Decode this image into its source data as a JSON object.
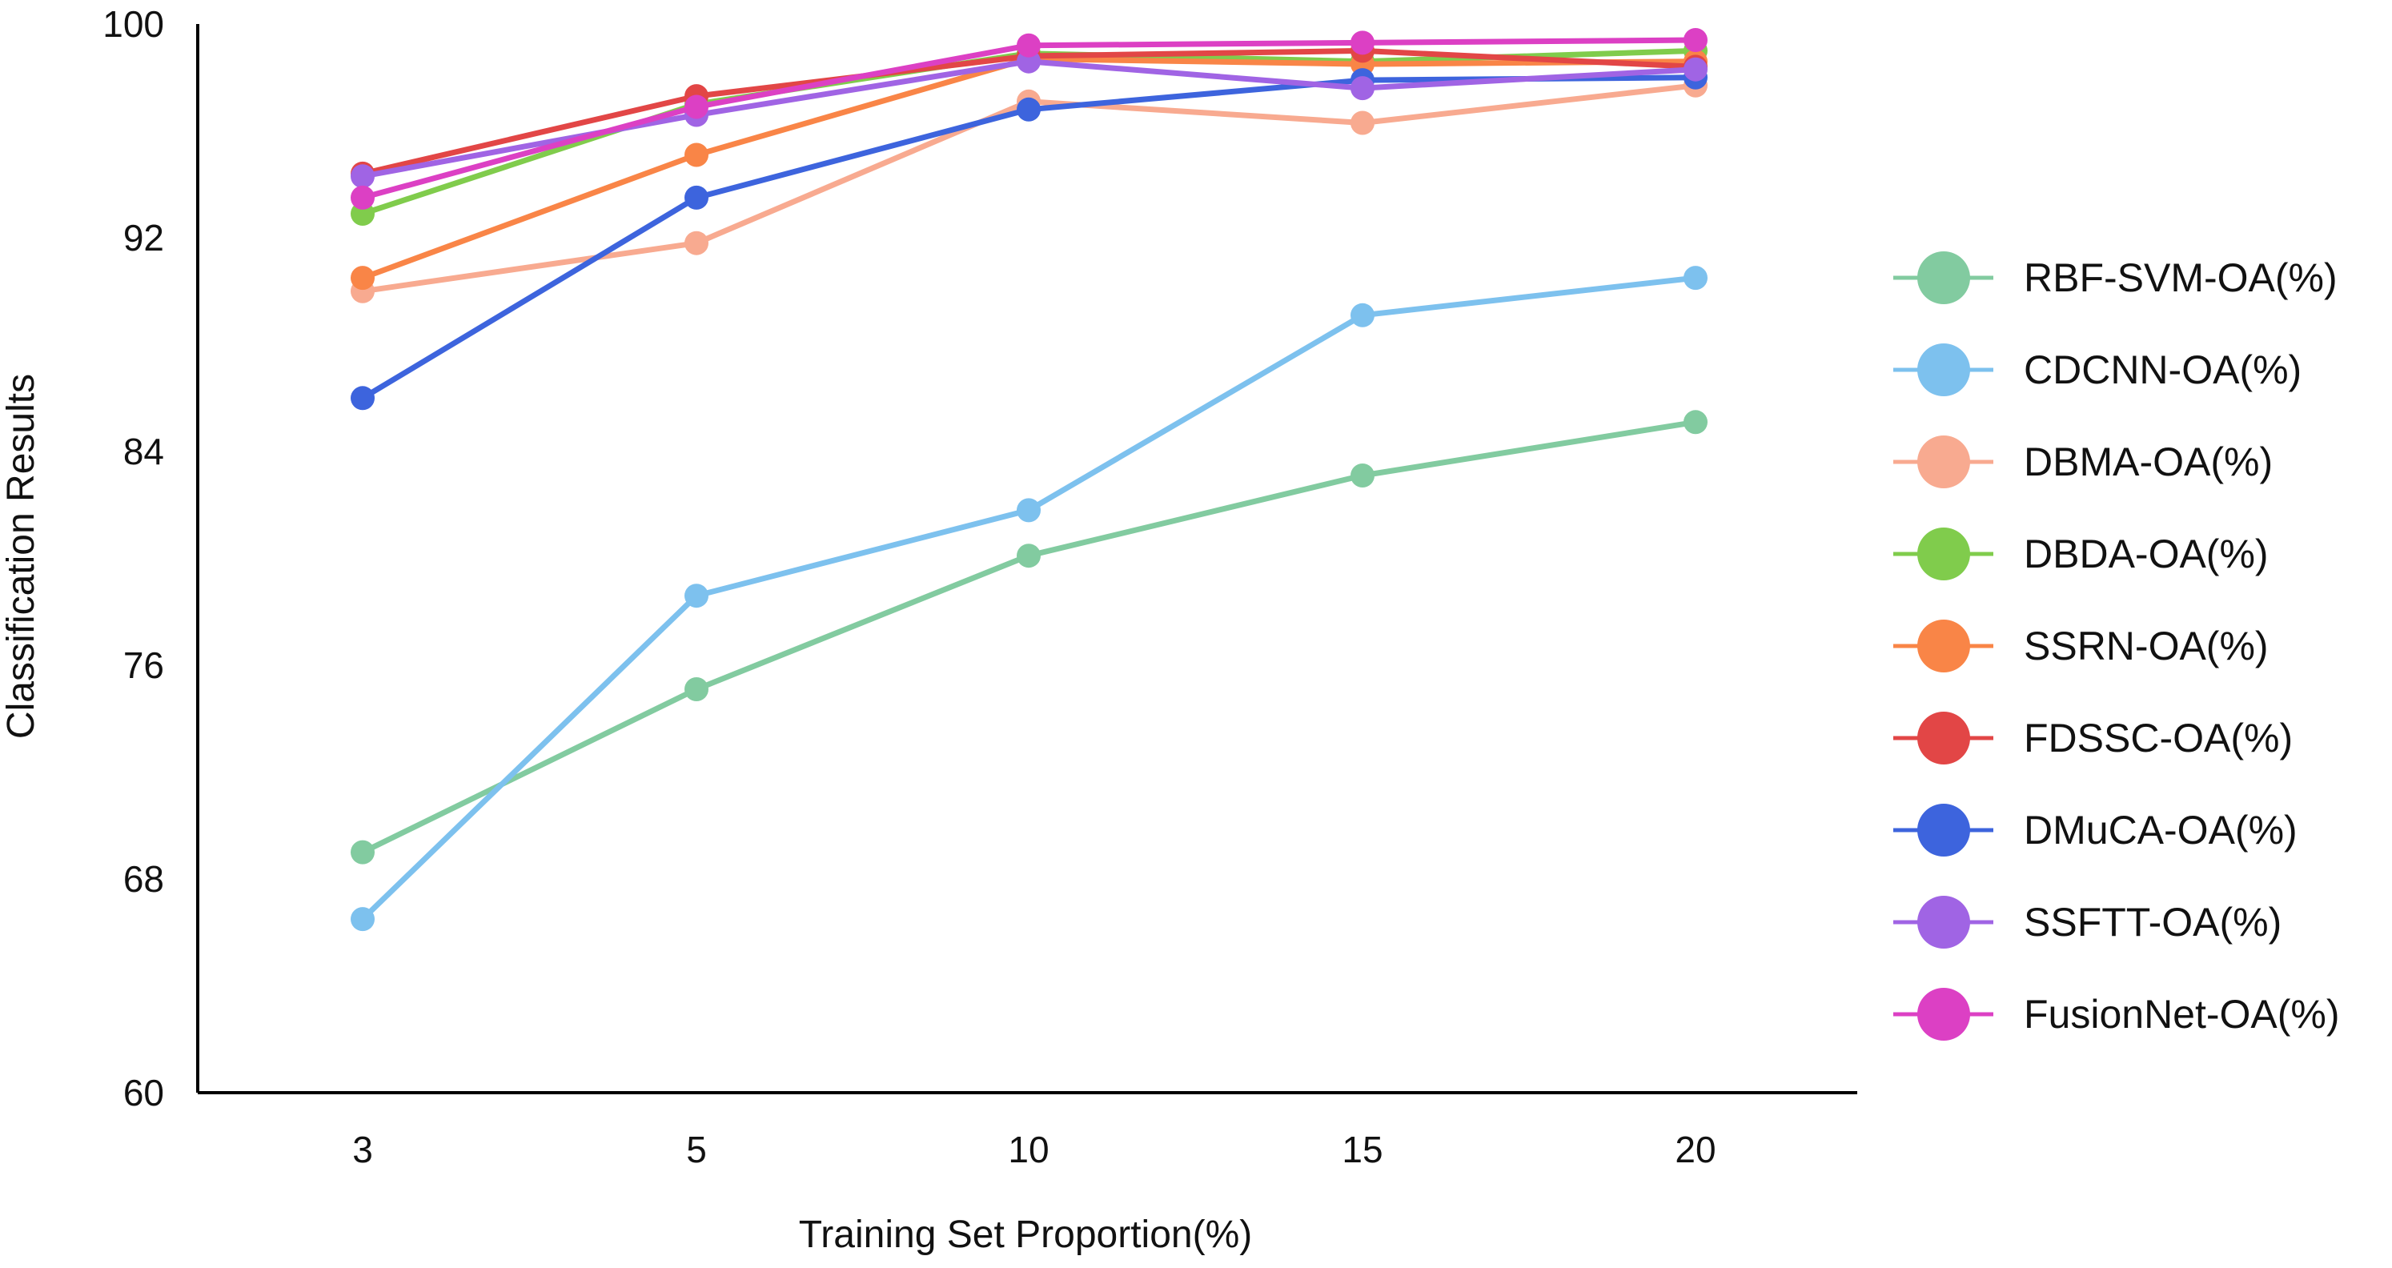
{
  "chart_data": {
    "type": "line",
    "title": "",
    "xlabel": "Training Set Proportion(%)",
    "ylabel": "Classification Results",
    "categories": [
      "3",
      "5",
      "10",
      "15",
      "20"
    ],
    "ylim": [
      60,
      100
    ],
    "yticks": [
      60,
      68,
      76,
      84,
      92,
      100
    ],
    "grid": false,
    "legend_position": "right",
    "series": [
      {
        "name": "RBF-SVM-OA(%)",
        "color": "#82CBA0",
        "values": [
          69.0,
          75.1,
          80.1,
          83.1,
          85.1
        ]
      },
      {
        "name": "CDCNN-OA(%)",
        "color": "#7DC1EE",
        "values": [
          66.5,
          78.6,
          81.8,
          89.1,
          90.5
        ]
      },
      {
        "name": "DBMA-OA(%)",
        "color": "#F8AA90",
        "values": [
          90.0,
          91.8,
          97.1,
          96.3,
          97.7
        ]
      },
      {
        "name": "DBDA-OA(%)",
        "color": "#80CC4C",
        "values": [
          92.9,
          97.0,
          98.9,
          98.6,
          99.0
        ]
      },
      {
        "name": "SSRN-OA(%)",
        "color": "#F98547",
        "values": [
          90.5,
          95.1,
          98.7,
          98.5,
          98.6
        ]
      },
      {
        "name": "FDSSC-OA(%)",
        "color": "#E24646",
        "values": [
          94.4,
          97.3,
          98.8,
          99.0,
          98.4
        ]
      },
      {
        "name": "DMuCA-OA(%)",
        "color": "#3D64DD",
        "values": [
          86.0,
          93.5,
          96.8,
          97.9,
          98.0
        ]
      },
      {
        "name": "SSFTT-OA(%)",
        "color": "#A064E4",
        "values": [
          94.3,
          96.6,
          98.6,
          97.6,
          98.3
        ]
      },
      {
        "name": "FusionNet-OA(%)",
        "color": "#DC40C4",
        "values": [
          93.5,
          96.9,
          99.2,
          99.3,
          99.4
        ]
      }
    ]
  }
}
